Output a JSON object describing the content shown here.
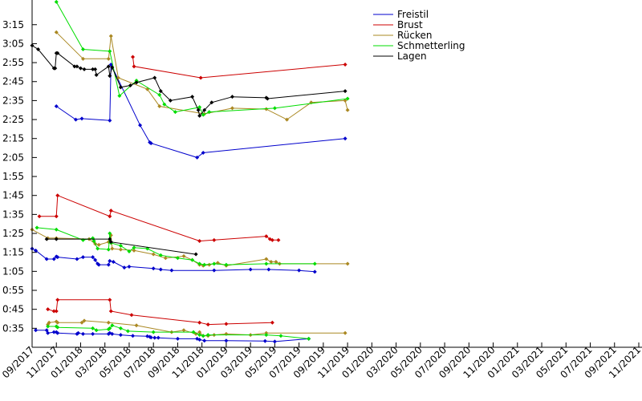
{
  "chart_data": {
    "type": "line",
    "title": "",
    "xlabel": "",
    "ylabel": "",
    "x_range": [
      "2017-09",
      "2021-11"
    ],
    "y_range_seconds": [
      25,
      208
    ],
    "ylabels": [
      {
        "text": "3:15",
        "seconds": 195
      },
      {
        "text": "3:05",
        "seconds": 185
      },
      {
        "text": "2:55",
        "seconds": 175
      },
      {
        "text": "2:45",
        "seconds": 165
      },
      {
        "text": "2:35",
        "seconds": 155
      },
      {
        "text": "2:25",
        "seconds": 145
      },
      {
        "text": "2:15",
        "seconds": 135
      },
      {
        "text": "2:05",
        "seconds": 125
      },
      {
        "text": "1:55",
        "seconds": 115
      },
      {
        "text": "1:45",
        "seconds": 105
      },
      {
        "text": "1:35",
        "seconds": 95
      },
      {
        "text": "1:25",
        "seconds": 85
      },
      {
        "text": "1:15",
        "seconds": 75
      },
      {
        "text": "1:05",
        "seconds": 65
      },
      {
        "text": "0:55",
        "seconds": 55
      },
      {
        "text": "0:45",
        "seconds": 45
      },
      {
        "text": "0:35",
        "seconds": 35
      }
    ],
    "xlabels": [
      "09/2017",
      "11/2017",
      "01/2018",
      "03/2018",
      "05/2018",
      "07/2018",
      "09/2018",
      "11/2018",
      "01/2019",
      "03/2019",
      "05/2019",
      "07/2019",
      "09/2019",
      "11/2019",
      "01/2020",
      "03/2020",
      "05/2020",
      "07/2020",
      "09/2020",
      "11/2020",
      "01/2021",
      "03/2021",
      "05/2021",
      "07/2021",
      "09/2021",
      "11/2021"
    ],
    "x_unit": "months since 2017-09",
    "y_unit": "seconds",
    "legend_position": "top-right",
    "series": [
      {
        "name": "Freistil",
        "color": "#0000cc",
        "lines": [
          [
            [
              0.3,
              34
            ],
            [
              1.2,
              34
            ],
            [
              1.3,
              32.5
            ],
            [
              1.8,
              33
            ],
            [
              2,
              33
            ],
            [
              2.1,
              32.5
            ],
            [
              3.7,
              32
            ],
            [
              3.8,
              32.5
            ],
            [
              4.2,
              32
            ],
            [
              5,
              32
            ],
            [
              6.3,
              32
            ],
            [
              6.4,
              32.5
            ],
            [
              6.6,
              32
            ],
            [
              7.3,
              31.5
            ],
            [
              8.3,
              31
            ],
            [
              9.5,
              30.8
            ],
            [
              9.7,
              30.5
            ],
            [
              9.8,
              30.2
            ],
            [
              10.1,
              30
            ],
            [
              10.4,
              30
            ],
            [
              12,
              29.5
            ],
            [
              13.6,
              29.5
            ],
            [
              13.8,
              29
            ],
            [
              14.2,
              28.5
            ],
            [
              16,
              28.5
            ],
            [
              19.2,
              28.3
            ],
            [
              20,
              28
            ],
            [
              22.8,
              29.5
            ]
          ],
          [
            [
              0,
              77
            ],
            [
              0.3,
              76
            ],
            [
              1.2,
              71.5
            ],
            [
              1.8,
              71.5
            ],
            [
              2,
              72.8
            ],
            [
              2.1,
              72.5
            ],
            [
              3.7,
              71.5
            ],
            [
              4.2,
              72.5
            ],
            [
              5,
              72.5
            ],
            [
              5.2,
              71
            ],
            [
              5.4,
              69
            ],
            [
              5.5,
              68.5
            ],
            [
              6.3,
              68.5
            ],
            [
              6.4,
              70.5
            ],
            [
              6.7,
              70
            ],
            [
              7.6,
              67
            ],
            [
              8,
              67.5
            ],
            [
              10,
              66.5
            ],
            [
              10.6,
              66
            ],
            [
              11.5,
              65.5
            ],
            [
              15,
              65.5
            ],
            [
              18,
              66
            ],
            [
              19.5,
              66
            ],
            [
              22,
              65.5
            ],
            [
              23.3,
              64.8
            ]
          ],
          [
            [
              2,
              152
            ],
            [
              3.6,
              145
            ],
            [
              4.1,
              145.5
            ],
            [
              6.4,
              144.5
            ],
            [
              6.5,
              174
            ],
            [
              8.9,
              142
            ],
            [
              9.7,
              133
            ],
            [
              9.8,
              132.5
            ],
            [
              13.6,
              125
            ],
            [
              14.1,
              127.5
            ],
            [
              25.8,
              135
            ]
          ]
        ]
      },
      {
        "name": "Brust",
        "color": "#cc0000",
        "lines": [
          [
            [
              1.3,
              45
            ],
            [
              1.8,
              44
            ],
            [
              2,
              44
            ],
            [
              2.1,
              50
            ],
            [
              6.4,
              50
            ],
            [
              6.5,
              44
            ],
            [
              8.2,
              42
            ],
            [
              13.8,
              38
            ],
            [
              14.5,
              37
            ],
            [
              16,
              37.3
            ],
            [
              19.8,
              38
            ]
          ],
          [
            [
              0.6,
              94
            ],
            [
              2,
              94
            ],
            [
              2.1,
              105
            ],
            [
              6.4,
              94
            ],
            [
              6.5,
              97
            ],
            [
              13.8,
              81
            ],
            [
              15,
              81.5
            ],
            [
              19.3,
              83.5
            ],
            [
              19.6,
              82
            ],
            [
              19.8,
              81.5
            ],
            [
              20.3,
              81.5
            ]
          ],
          [
            [
              8.3,
              178
            ],
            [
              8.4,
              173
            ],
            [
              13.9,
              167
            ],
            [
              25.8,
              174
            ]
          ]
        ]
      },
      {
        "name": "Rücken",
        "color": "#aa8822",
        "lines": [
          [
            [
              1.3,
              37
            ],
            [
              1.4,
              38
            ],
            [
              2,
              38.5
            ],
            [
              2.1,
              38
            ],
            [
              4.1,
              38
            ],
            [
              4.3,
              39
            ],
            [
              6.3,
              38
            ],
            [
              8.6,
              36.5
            ],
            [
              11.5,
              33
            ],
            [
              12.5,
              34
            ],
            [
              13.5,
              32
            ],
            [
              13.8,
              33
            ],
            [
              14.1,
              31
            ],
            [
              14.5,
              31
            ],
            [
              15,
              31.5
            ],
            [
              16,
              32
            ],
            [
              18,
              31.5
            ],
            [
              19.3,
              32.5
            ],
            [
              25.8,
              32.5
            ]
          ],
          [
            [
              0,
              87
            ],
            [
              1.3,
              82.5
            ],
            [
              2,
              82.5
            ],
            [
              4.7,
              82
            ],
            [
              5.2,
              79.5
            ],
            [
              5.5,
              79
            ],
            [
              6.3,
              80.5
            ],
            [
              6.5,
              84
            ],
            [
              6.6,
              77
            ],
            [
              7.3,
              76.5
            ],
            [
              8.4,
              76
            ],
            [
              10,
              74
            ],
            [
              11,
              72
            ],
            [
              12.5,
              73
            ],
            [
              13.2,
              71
            ],
            [
              13.8,
              68.5
            ],
            [
              14.1,
              68
            ],
            [
              14.6,
              68.5
            ],
            [
              15.3,
              69.5
            ],
            [
              16,
              68
            ],
            [
              19.3,
              71.5
            ],
            [
              19.7,
              70
            ],
            [
              20.1,
              70
            ],
            [
              20.4,
              69
            ],
            [
              26,
              69
            ]
          ],
          [
            [
              2,
              191
            ],
            [
              4.2,
              177
            ],
            [
              6.3,
              177
            ],
            [
              6.5,
              189
            ],
            [
              7.1,
              167
            ],
            [
              9.5,
              161
            ],
            [
              10.5,
              152
            ],
            [
              14.2,
              148
            ],
            [
              16.5,
              151
            ],
            [
              19.3,
              150.5
            ],
            [
              21,
              145
            ],
            [
              23,
              154
            ],
            [
              25.8,
              155
            ],
            [
              26,
              150
            ]
          ]
        ]
      },
      {
        "name": "Schmetterling",
        "color": "#00dd00",
        "lines": [
          [
            [
              1.3,
              36
            ],
            [
              2,
              36
            ],
            [
              2.1,
              35.5
            ],
            [
              5,
              35
            ],
            [
              5.3,
              34
            ],
            [
              6.3,
              34.5
            ],
            [
              6.4,
              35
            ],
            [
              6.6,
              36.5
            ],
            [
              7.3,
              35
            ],
            [
              7.9,
              33.5
            ],
            [
              10,
              33
            ],
            [
              13.3,
              33
            ],
            [
              13.8,
              31.5
            ],
            [
              14.1,
              31
            ],
            [
              14.5,
              31.5
            ],
            [
              19.3,
              31.5
            ],
            [
              20.5,
              31
            ],
            [
              22.8,
              29.5
            ]
          ],
          [
            [
              0.4,
              88
            ],
            [
              2,
              87
            ],
            [
              4.2,
              81.5
            ],
            [
              5,
              82.5
            ],
            [
              5.1,
              81
            ],
            [
              5.4,
              77
            ],
            [
              6.3,
              76.5
            ],
            [
              6.4,
              85
            ],
            [
              6.5,
              80
            ],
            [
              7.3,
              78.5
            ],
            [
              8,
              75.5
            ],
            [
              8.4,
              77.5
            ],
            [
              9.5,
              77
            ],
            [
              10.6,
              73.5
            ],
            [
              12,
              72
            ],
            [
              13.2,
              71
            ],
            [
              13.8,
              69
            ],
            [
              14.2,
              68.5
            ],
            [
              15,
              69
            ],
            [
              16,
              68.5
            ],
            [
              19.3,
              69
            ],
            [
              23.3,
              69
            ]
          ],
          [
            [
              2,
              207
            ],
            [
              4.2,
              182
            ],
            [
              6.4,
              181
            ],
            [
              7.2,
              157.5
            ],
            [
              8.6,
              165.5
            ],
            [
              10.5,
              158
            ],
            [
              10.9,
              153
            ],
            [
              11.8,
              149
            ],
            [
              13.8,
              151.5
            ],
            [
              14.1,
              147.5
            ],
            [
              14.6,
              149
            ],
            [
              20,
              151
            ],
            [
              26,
              156
            ]
          ]
        ]
      },
      {
        "name": "Lagen",
        "color": "#000000",
        "lines": [
          [
            [
              1.2,
              82
            ],
            [
              2,
              82
            ],
            [
              6.4,
              82
            ],
            [
              6.5,
              80.5
            ],
            [
              13.5,
              74
            ]
          ],
          [
            [
              0,
              184
            ],
            [
              0.5,
              182
            ],
            [
              1.8,
              172
            ],
            [
              1.9,
              172
            ],
            [
              2,
              180
            ],
            [
              2.1,
              180
            ],
            [
              3.5,
              173
            ],
            [
              3.7,
              173
            ],
            [
              4,
              172
            ],
            [
              4.3,
              171.5
            ],
            [
              5,
              171.5
            ],
            [
              5.2,
              171.5
            ],
            [
              5.3,
              168.5
            ],
            [
              6.3,
              173
            ],
            [
              6.4,
              168
            ],
            [
              6.6,
              172.5
            ],
            [
              7.3,
              162
            ],
            [
              8.1,
              163
            ],
            [
              8.6,
              164.5
            ],
            [
              10.1,
              167
            ],
            [
              10.6,
              160
            ],
            [
              11.4,
              155
            ],
            [
              13.2,
              157
            ],
            [
              13.7,
              150
            ],
            [
              13.8,
              147
            ],
            [
              14.2,
              150
            ],
            [
              14.8,
              154
            ],
            [
              16.5,
              157
            ],
            [
              19.3,
              156.5
            ],
            [
              19.4,
              156
            ],
            [
              25.8,
              160
            ]
          ]
        ]
      }
    ]
  }
}
